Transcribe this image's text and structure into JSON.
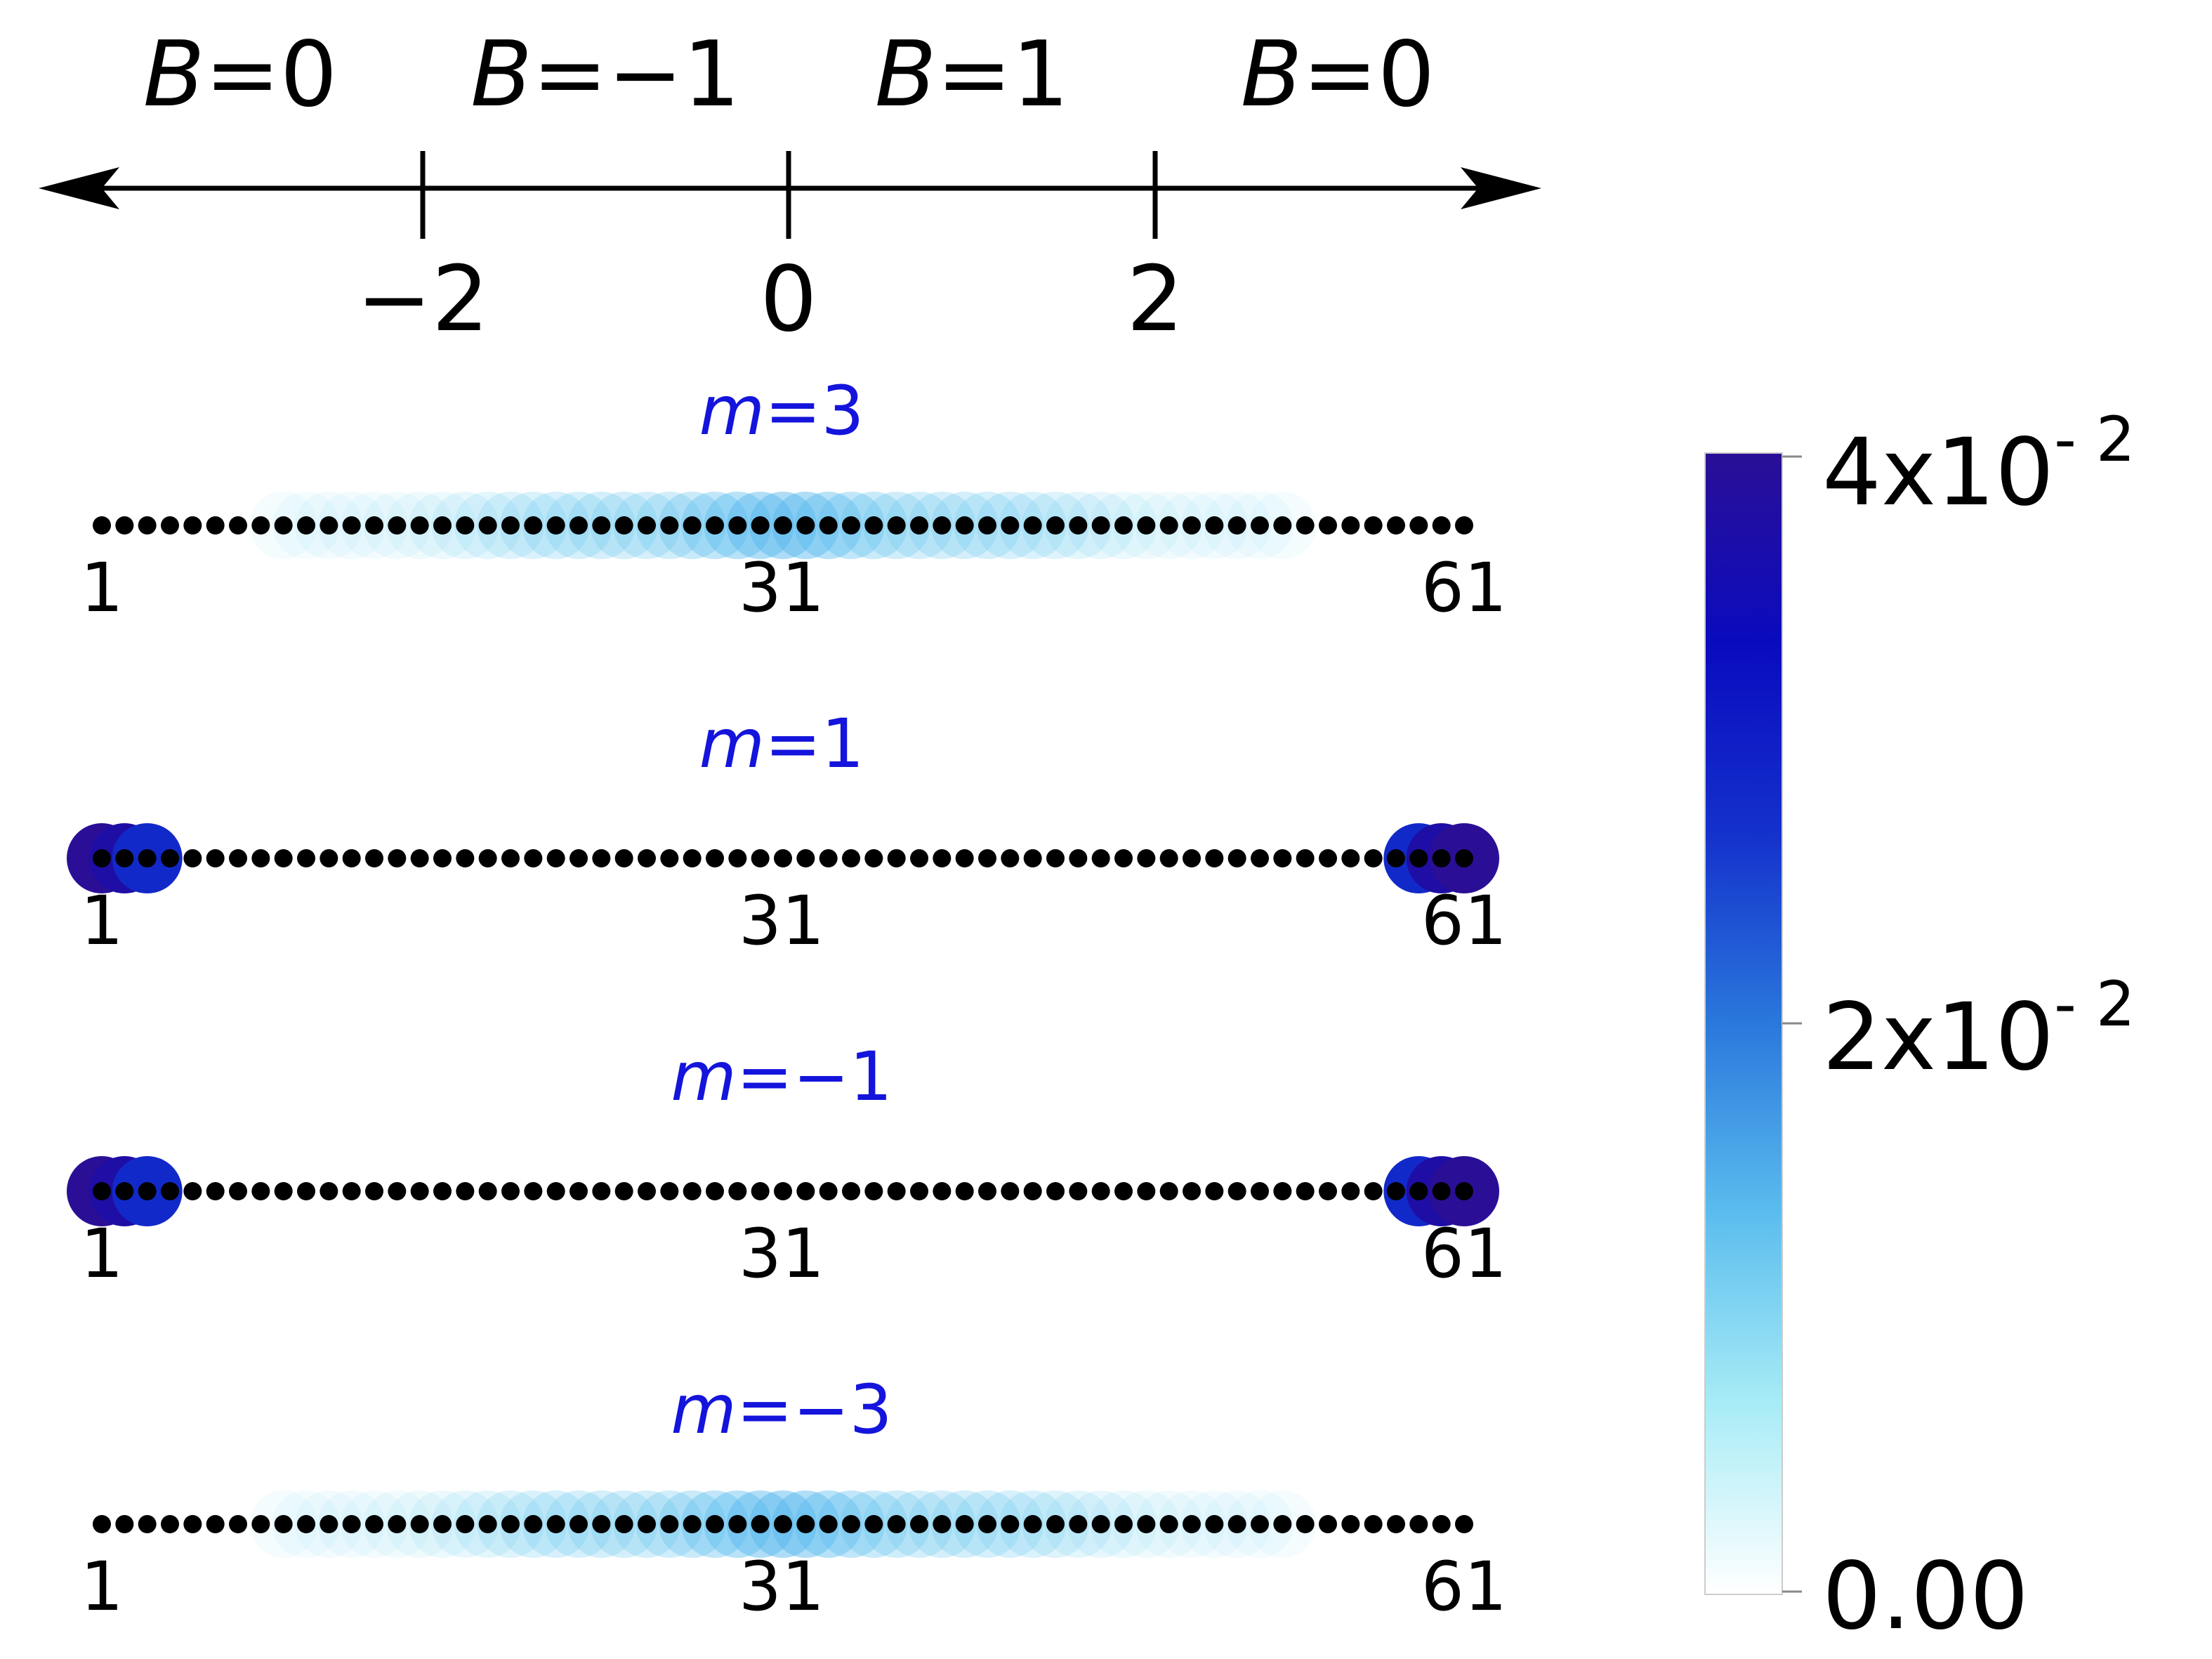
{
  "phase_diagram": {
    "regions": [
      {
        "var": "B",
        "eq": "=0"
      },
      {
        "var": "B",
        "eq": "=−1"
      },
      {
        "var": "B",
        "eq": "=1"
      },
      {
        "var": "B",
        "eq": "=0"
      }
    ],
    "ticks": [
      {
        "value": -2,
        "label": "−2"
      },
      {
        "value": 0,
        "label": "0"
      },
      {
        "value": 2,
        "label": "2"
      }
    ]
  },
  "chains": [
    {
      "var": "m",
      "eq": "=3",
      "profile": "bulk",
      "site_labels": [
        "1",
        "31",
        "61"
      ]
    },
    {
      "var": "m",
      "eq": "=1",
      "profile": "edge",
      "site_labels": [
        "1",
        "31",
        "61"
      ]
    },
    {
      "var": "m",
      "eq": "=−1",
      "profile": "edge",
      "site_labels": [
        "1",
        "31",
        "61"
      ]
    },
    {
      "var": "m",
      "eq": "=−3",
      "profile": "bulk",
      "site_labels": [
        "1",
        "31",
        "61"
      ]
    }
  ],
  "sites": {
    "count": 61
  },
  "colorbar": {
    "ticks": [
      {
        "value": 0.04,
        "mantissa": "4x10",
        "exponent": "- 2"
      },
      {
        "value": 0.02,
        "mantissa": "2x10",
        "exponent": "- 2"
      },
      {
        "value": 0.0,
        "mantissa": "0.00",
        "exponent": ""
      }
    ],
    "vmin": 0.0,
    "vmax": 0.04,
    "colormap": [
      "#ffffff",
      "#a8ecf6",
      "#5bbdee",
      "#2a78dc",
      "#1431cc",
      "#0a0bbf",
      "#2a0f96"
    ]
  },
  "colors": {
    "title_color": "#1414dc",
    "dot_color": "#000000",
    "axis_color": "#000000"
  }
}
